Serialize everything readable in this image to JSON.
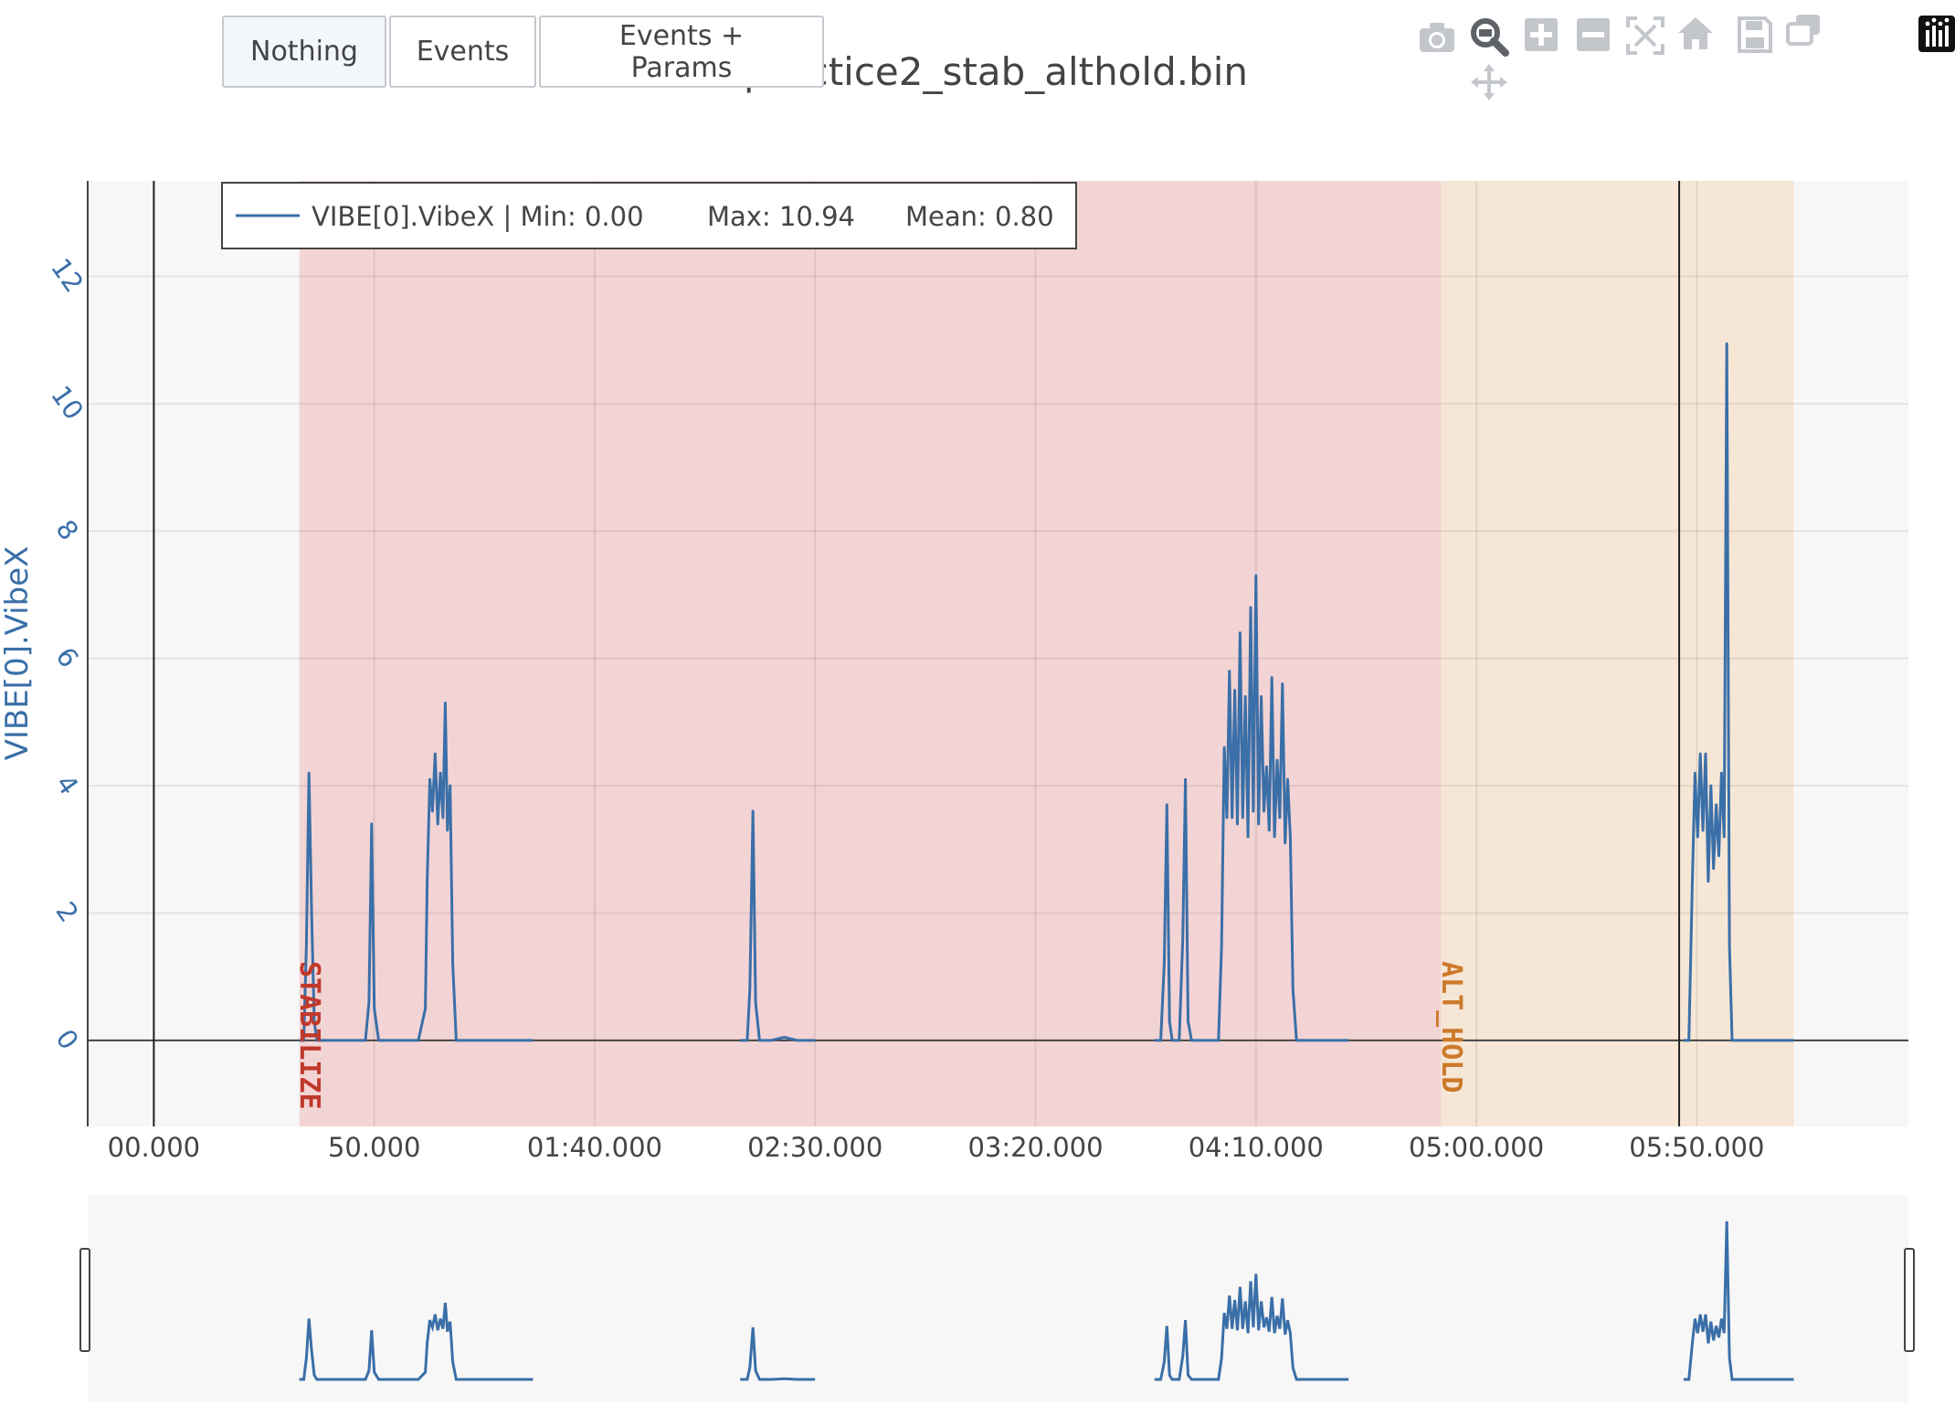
{
  "title": "practice2_stab_althold.bin",
  "buttons": {
    "nothing": "Nothing",
    "events": "Events",
    "events_params": "Events + Params"
  },
  "modebar": {
    "icons": [
      "camera-icon",
      "zoom-icon",
      "pan-icon",
      "zoom-in-icon",
      "zoom-out-icon",
      "autoscale-icon",
      "home-icon",
      "save-icon",
      "compare-icon",
      "plotly-logo-icon"
    ]
  },
  "colors": {
    "line": "#3a6fa8",
    "stabilize_band": "#f3d4d4",
    "stabilize_text": "#c0392b",
    "althold_band": "#f6e6d6",
    "althold_text": "#cc7a2a",
    "plot_bg": "#f7f7f7",
    "axis_title": "#3a6fa8"
  },
  "chart_data": {
    "type": "line",
    "title": "practice2_stab_althold.bin",
    "ylabel": "VIBE[0].VibeX",
    "xlabel": "",
    "x_tick_labels": [
      "00.000",
      "50.000",
      "01:40.000",
      "02:30.000",
      "03:20.000",
      "04:10.000",
      "05:00.000",
      "05:50.000"
    ],
    "x_tick_values": [
      0,
      50,
      100,
      150,
      200,
      250,
      300,
      350
    ],
    "xlim": [
      -15,
      398
    ],
    "y_tick_values": [
      0,
      2,
      4,
      6,
      8,
      10,
      12
    ],
    "ylim": [
      -1.35,
      13.5
    ],
    "grid": true,
    "legend_placement": "top-left",
    "legend": {
      "series": "VIBE[0].VibeX",
      "min": "Min: 0.00",
      "max": "Max: 10.94",
      "mean": "Mean: 0.80"
    },
    "cursor_lines": [
      0,
      346
    ],
    "modes": [
      {
        "name": "STABILIZE",
        "start": 33,
        "end": 292
      },
      {
        "name": "ALT_HOLD",
        "start": 292,
        "end": 372
      }
    ],
    "series": [
      {
        "name": "VIBE[0].VibeX",
        "segments": [
          [
            [
              33,
              0
            ],
            [
              34,
              0
            ],
            [
              34.6,
              1.5
            ],
            [
              35.2,
              4.2
            ],
            [
              35.8,
              2
            ],
            [
              36.4,
              0.3
            ],
            [
              37,
              0
            ],
            [
              48,
              0
            ],
            [
              48.8,
              0.6
            ],
            [
              49.4,
              3.4
            ],
            [
              50,
              0.5
            ],
            [
              51,
              0
            ],
            [
              60,
              0
            ],
            [
              61.6,
              0.5
            ],
            [
              62,
              2.5
            ],
            [
              62.6,
              4.1
            ],
            [
              63.2,
              3.6
            ],
            [
              63.8,
              4.5
            ],
            [
              64.4,
              3.4
            ],
            [
              65,
              4.2
            ],
            [
              65.6,
              3.5
            ],
            [
              66.1,
              5.3
            ],
            [
              66.6,
              3.3
            ],
            [
              67.2,
              4
            ],
            [
              67.8,
              1.2
            ],
            [
              68.6,
              0
            ],
            [
              72,
              0
            ],
            [
              80,
              0
            ],
            [
              86,
              0
            ]
          ],
          [
            [
              133,
              0
            ],
            [
              134.6,
              0
            ],
            [
              135.2,
              0.8
            ],
            [
              135.9,
              3.6
            ],
            [
              136.5,
              0.6
            ],
            [
              137.4,
              0
            ],
            [
              140,
              0
            ],
            [
              143,
              0.05
            ],
            [
              146,
              0
            ],
            [
              150,
              0
            ]
          ],
          [
            [
              227,
              0
            ],
            [
              228.4,
              0
            ],
            [
              229.2,
              1.2
            ],
            [
              229.8,
              3.7
            ],
            [
              230.4,
              0.3
            ],
            [
              231,
              0
            ],
            [
              232.6,
              0
            ],
            [
              233.4,
              1.6
            ],
            [
              234,
              4.1
            ],
            [
              234.6,
              0.3
            ],
            [
              235.4,
              0
            ],
            [
              241.5,
              0
            ],
            [
              242.2,
              1.5
            ],
            [
              242.8,
              4.6
            ],
            [
              243.4,
              3.5
            ],
            [
              244,
              5.8
            ],
            [
              244.6,
              3.5
            ],
            [
              245.2,
              5.5
            ],
            [
              245.8,
              3.4
            ],
            [
              246.4,
              6.4
            ],
            [
              247,
              3.5
            ],
            [
              247.6,
              5.4
            ],
            [
              248.2,
              3.2
            ],
            [
              248.8,
              6.8
            ],
            [
              249.4,
              3.6
            ],
            [
              250,
              7.3
            ],
            [
              250.6,
              3.4
            ],
            [
              251.2,
              5.4
            ],
            [
              251.8,
              3.6
            ],
            [
              252.4,
              4.3
            ],
            [
              253,
              3.3
            ],
            [
              253.6,
              5.7
            ],
            [
              254.2,
              3.2
            ],
            [
              254.8,
              4.4
            ],
            [
              255.4,
              3.5
            ],
            [
              256,
              5.6
            ],
            [
              256.6,
              3.1
            ],
            [
              257.2,
              4.1
            ],
            [
              257.8,
              3.2
            ],
            [
              258.4,
              0.8
            ],
            [
              259.2,
              0
            ],
            [
              265,
              0
            ],
            [
              271,
              0
            ]
          ],
          [
            [
              347,
              0
            ],
            [
              348.2,
              0
            ],
            [
              349,
              2.5
            ],
            [
              349.6,
              4.2
            ],
            [
              350.2,
              3.2
            ],
            [
              350.8,
              4.5
            ],
            [
              351.4,
              3.3
            ],
            [
              352,
              4.5
            ],
            [
              352.6,
              2.5
            ],
            [
              353.2,
              4
            ],
            [
              353.8,
              2.7
            ],
            [
              354.4,
              3.7
            ],
            [
              355,
              2.9
            ],
            [
              355.6,
              4.2
            ],
            [
              356.2,
              3.2
            ],
            [
              356.8,
              10.94
            ],
            [
              357.4,
              1.5
            ],
            [
              358,
              0
            ],
            [
              365,
              0
            ],
            [
              372,
              0
            ]
          ]
        ]
      }
    ]
  }
}
